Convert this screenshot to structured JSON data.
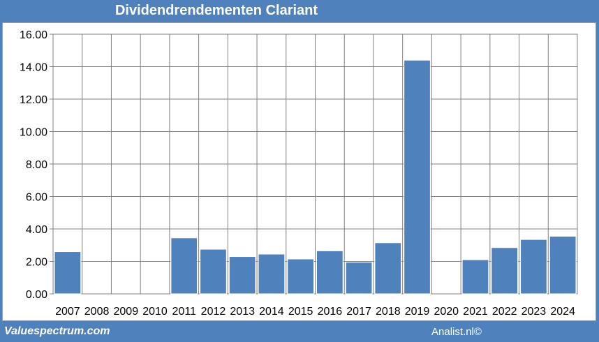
{
  "chart_data": {
    "type": "bar",
    "title": "Dividendrendementen Clariant",
    "categories": [
      "2007",
      "2008",
      "2009",
      "2010",
      "2011",
      "2012",
      "2013",
      "2014",
      "2015",
      "2016",
      "2017",
      "2018",
      "2019",
      "2020",
      "2021",
      "2022",
      "2023",
      "2024"
    ],
    "values": [
      2.6,
      0,
      0,
      0,
      3.45,
      2.75,
      2.3,
      2.45,
      2.15,
      2.65,
      1.95,
      3.15,
      14.4,
      0,
      2.1,
      2.85,
      3.35,
      3.55
    ],
    "ylim": [
      0,
      16
    ],
    "yticks": [
      "0.00",
      "2.00",
      "4.00",
      "6.00",
      "8.00",
      "10.00",
      "12.00",
      "14.00",
      "16.00"
    ],
    "grid": true,
    "bar_color": "#4f81bd"
  },
  "footer": {
    "source_left": "Valuespectrum.com",
    "source_right": "Analist.nl©"
  }
}
